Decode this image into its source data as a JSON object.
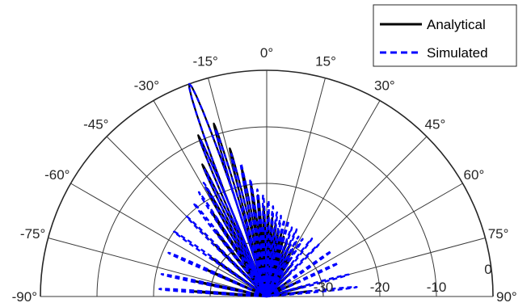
{
  "chart_data": {
    "type": "polar-line",
    "angle_range_deg": [
      -90,
      90
    ],
    "angle_tick_step_deg": 15,
    "angle_ticks": [
      "-90°",
      "-75°",
      "-60°",
      "-45°",
      "-30°",
      "-15°",
      "0°",
      "15°",
      "30°",
      "45°",
      "60°",
      "75°",
      "90°"
    ],
    "radial_unit": "dB",
    "radial_range": [
      -40,
      0
    ],
    "radial_ticks": [
      -30,
      -20,
      -10,
      0
    ],
    "radial_tick_labels": [
      "-30",
      "-20",
      "-10",
      "0"
    ],
    "grid": true,
    "legend_position": "top-right",
    "series": [
      {
        "name": "Analytical",
        "color": "#000000",
        "line_style": "solid",
        "main_lobe_deg": -20,
        "main_lobe_db": 0,
        "lobes": [
          {
            "angle": -20,
            "db": 0
          },
          {
            "angle": -17,
            "db": -8
          },
          {
            "angle": -14,
            "db": -13
          },
          {
            "angle": -11,
            "db": -17
          },
          {
            "angle": -8,
            "db": -20
          },
          {
            "angle": -5,
            "db": -22
          },
          {
            "angle": -2,
            "db": -24
          },
          {
            "angle": 1,
            "db": -25
          },
          {
            "angle": 4,
            "db": -26
          },
          {
            "angle": 7,
            "db": -27
          },
          {
            "angle": 10,
            "db": -28
          },
          {
            "angle": 13,
            "db": -28.5
          },
          {
            "angle": 16,
            "db": -29
          },
          {
            "angle": 20,
            "db": -29.5
          },
          {
            "angle": 24,
            "db": -30
          },
          {
            "angle": 28,
            "db": -31
          },
          {
            "angle": 32,
            "db": -32
          },
          {
            "angle": 38,
            "db": -33
          },
          {
            "angle": 45,
            "db": -34
          },
          {
            "angle": 55,
            "db": -35
          },
          {
            "angle": 65,
            "db": -34
          },
          {
            "angle": 75,
            "db": -33
          },
          {
            "angle": 83,
            "db": -32
          },
          {
            "angle": -23,
            "db": -9
          },
          {
            "angle": -26,
            "db": -14
          },
          {
            "angle": -29,
            "db": -18
          },
          {
            "angle": -33,
            "db": -22
          },
          {
            "angle": -38,
            "db": -25
          },
          {
            "angle": -45,
            "db": -27
          },
          {
            "angle": -55,
            "db": -28
          },
          {
            "angle": -66,
            "db": -28
          },
          {
            "angle": -78,
            "db": -27
          },
          {
            "angle": -86,
            "db": -27
          }
        ]
      },
      {
        "name": "Simulated",
        "color": "#0000ff",
        "line_style": "dashed",
        "main_lobe_deg": -20,
        "main_lobe_db": 0,
        "lobes": [
          {
            "angle": -20,
            "db": 0
          },
          {
            "angle": -17,
            "db": -9
          },
          {
            "angle": -14,
            "db": -14
          },
          {
            "angle": -11,
            "db": -16
          },
          {
            "angle": -8,
            "db": -19
          },
          {
            "angle": -5,
            "db": -21
          },
          {
            "angle": -2,
            "db": -22
          },
          {
            "angle": 1,
            "db": -23
          },
          {
            "angle": 4,
            "db": -24
          },
          {
            "angle": 7,
            "db": -25
          },
          {
            "angle": 10,
            "db": -25.5
          },
          {
            "angle": 13,
            "db": -26
          },
          {
            "angle": 16,
            "db": -26
          },
          {
            "angle": 20,
            "db": -27
          },
          {
            "angle": 24,
            "db": -27
          },
          {
            "angle": 28,
            "db": -28
          },
          {
            "angle": 32,
            "db": -28
          },
          {
            "angle": 38,
            "db": -27
          },
          {
            "angle": 45,
            "db": -27
          },
          {
            "angle": 55,
            "db": -26
          },
          {
            "angle": 65,
            "db": -26
          },
          {
            "angle": 75,
            "db": -25
          },
          {
            "angle": 84,
            "db": -24
          },
          {
            "angle": -23,
            "db": -10
          },
          {
            "angle": -26,
            "db": -15
          },
          {
            "angle": -29,
            "db": -17
          },
          {
            "angle": -33,
            "db": -18
          },
          {
            "angle": -38,
            "db": -19
          },
          {
            "angle": -45,
            "db": -20
          },
          {
            "angle": -55,
            "db": -20
          },
          {
            "angle": -66,
            "db": -21
          },
          {
            "angle": -78,
            "db": -21
          },
          {
            "angle": -86,
            "db": -21
          }
        ]
      }
    ]
  }
}
